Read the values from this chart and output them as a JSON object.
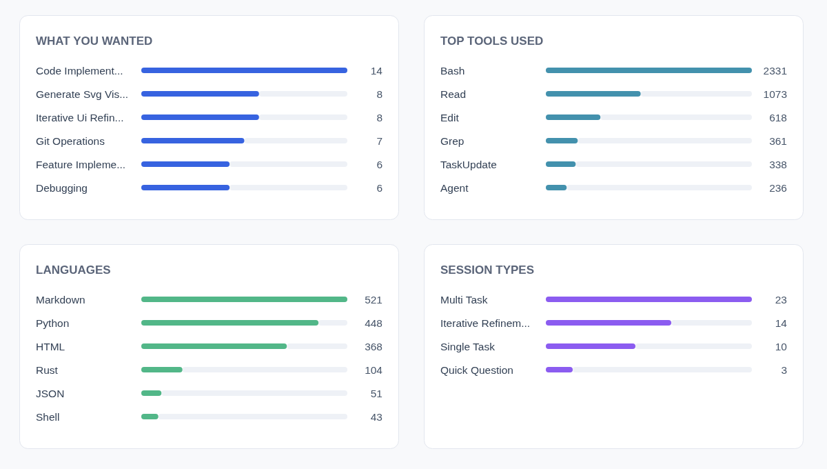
{
  "chart_data": [
    {
      "type": "bar",
      "orientation": "horizontal",
      "title": "WHAT YOU WANTED",
      "categories": [
        "Code Implement...",
        "Generate Svg Vis...",
        "Iterative Ui Refin...",
        "Git Operations",
        "Feature Impleme...",
        "Debugging"
      ],
      "values": [
        14,
        8,
        8,
        7,
        6,
        6
      ],
      "color": "#3763e0",
      "data_labels": true
    },
    {
      "type": "bar",
      "orientation": "horizontal",
      "title": "TOP TOOLS USED",
      "categories": [
        "Bash",
        "Read",
        "Edit",
        "Grep",
        "TaskUpdate",
        "Agent"
      ],
      "values": [
        2331,
        1073,
        618,
        361,
        338,
        236
      ],
      "color": "#4391ad",
      "data_labels": true
    },
    {
      "type": "bar",
      "orientation": "horizontal",
      "title": "LANGUAGES",
      "categories": [
        "Markdown",
        "Python",
        "HTML",
        "Rust",
        "JSON",
        "Shell"
      ],
      "values": [
        521,
        448,
        368,
        104,
        51,
        43
      ],
      "color": "#52b788",
      "data_labels": true
    },
    {
      "type": "bar",
      "orientation": "horizontal",
      "title": "SESSION TYPES",
      "categories": [
        "Multi Task",
        "Iterative Refinem...",
        "Single Task",
        "Quick Question"
      ],
      "values": [
        23,
        14,
        10,
        3
      ],
      "color": "#8b5cf0",
      "data_labels": true
    }
  ]
}
